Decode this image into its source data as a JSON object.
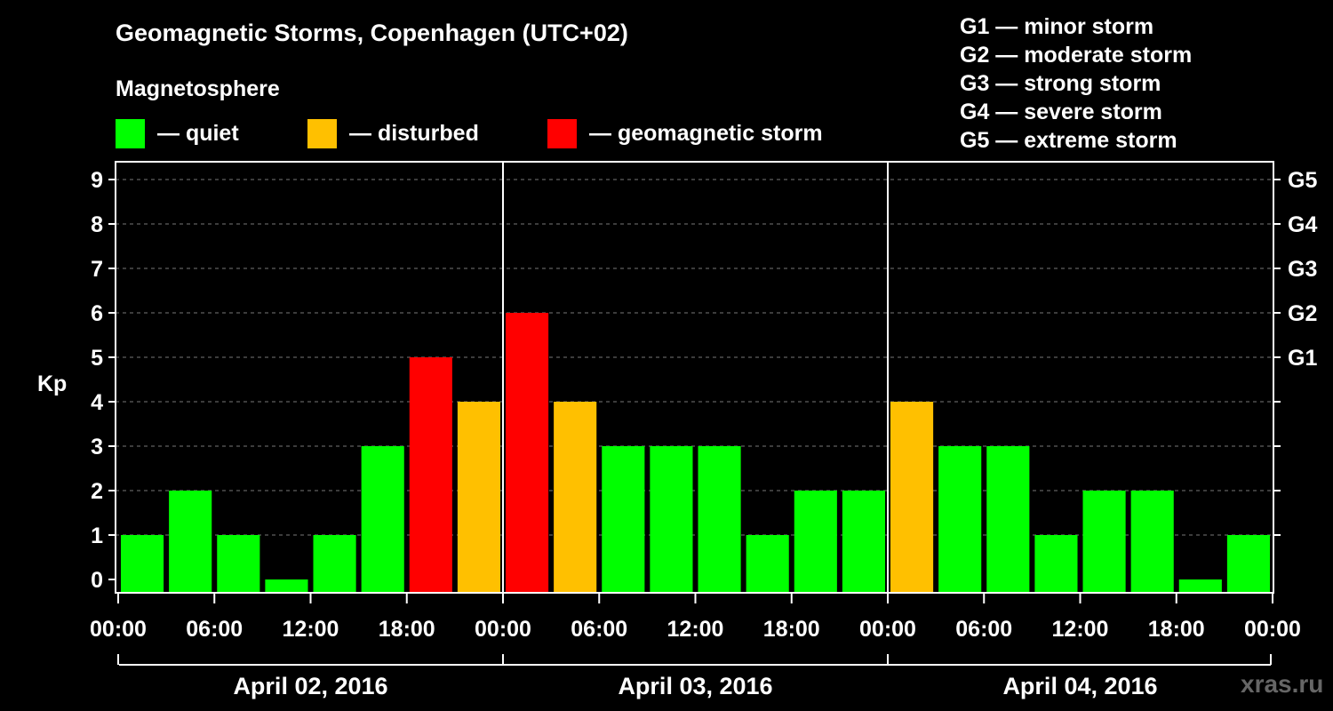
{
  "title": "Geomagnetic Storms, Copenhagen (UTC+02)",
  "subtitle": "Magnetosphere",
  "legend": [
    {
      "label": "— quiet",
      "color": "#00ff00"
    },
    {
      "label": "— disturbed",
      "color": "#ffc000"
    },
    {
      "label": "— geomagnetic storm",
      "color": "#ff0000"
    }
  ],
  "storm_scale": [
    "G1 — minor storm",
    "G2 — moderate storm",
    "G3 — strong storm",
    "G4 — severe storm",
    "G5 — extreme storm"
  ],
  "watermark": "xras.ru",
  "colors": {
    "quiet": "#00ff00",
    "disturbed": "#ffc000",
    "storm": "#ff0000",
    "background": "#000000"
  },
  "chart_data": {
    "type": "bar",
    "ylabel": "Kp",
    "ylim": [
      0,
      9
    ],
    "yticks": [
      0,
      1,
      2,
      3,
      4,
      5,
      6,
      7,
      8,
      9
    ],
    "right_ticks": [
      {
        "kp": 5,
        "label": "G1"
      },
      {
        "kp": 6,
        "label": "G2"
      },
      {
        "kp": 7,
        "label": "G3"
      },
      {
        "kp": 8,
        "label": "G4"
      },
      {
        "kp": 9,
        "label": "G5"
      }
    ],
    "xticks": [
      "00:00",
      "06:00",
      "12:00",
      "18:00",
      "00:00",
      "06:00",
      "12:00",
      "18:00",
      "00:00",
      "06:00",
      "12:00",
      "18:00",
      "00:00"
    ],
    "days": [
      "April 02, 2016",
      "April 03, 2016",
      "April 04, 2016"
    ],
    "grid": true,
    "categories": [
      "Apr 02 00:00",
      "Apr 02 03:00",
      "Apr 02 06:00",
      "Apr 02 09:00",
      "Apr 02 12:00",
      "Apr 02 15:00",
      "Apr 02 18:00",
      "Apr 02 21:00",
      "Apr 03 00:00",
      "Apr 03 03:00",
      "Apr 03 06:00",
      "Apr 03 09:00",
      "Apr 03 12:00",
      "Apr 03 15:00",
      "Apr 03 18:00",
      "Apr 03 21:00",
      "Apr 04 00:00",
      "Apr 04 03:00",
      "Apr 04 06:00",
      "Apr 04 09:00",
      "Apr 04 12:00",
      "Apr 04 15:00",
      "Apr 04 18:00",
      "Apr 04 21:00"
    ],
    "values": [
      1,
      2,
      1,
      0,
      1,
      3,
      5,
      4,
      6,
      4,
      3,
      3,
      3,
      1,
      2,
      2,
      4,
      3,
      3,
      1,
      2,
      2,
      0,
      1
    ]
  }
}
